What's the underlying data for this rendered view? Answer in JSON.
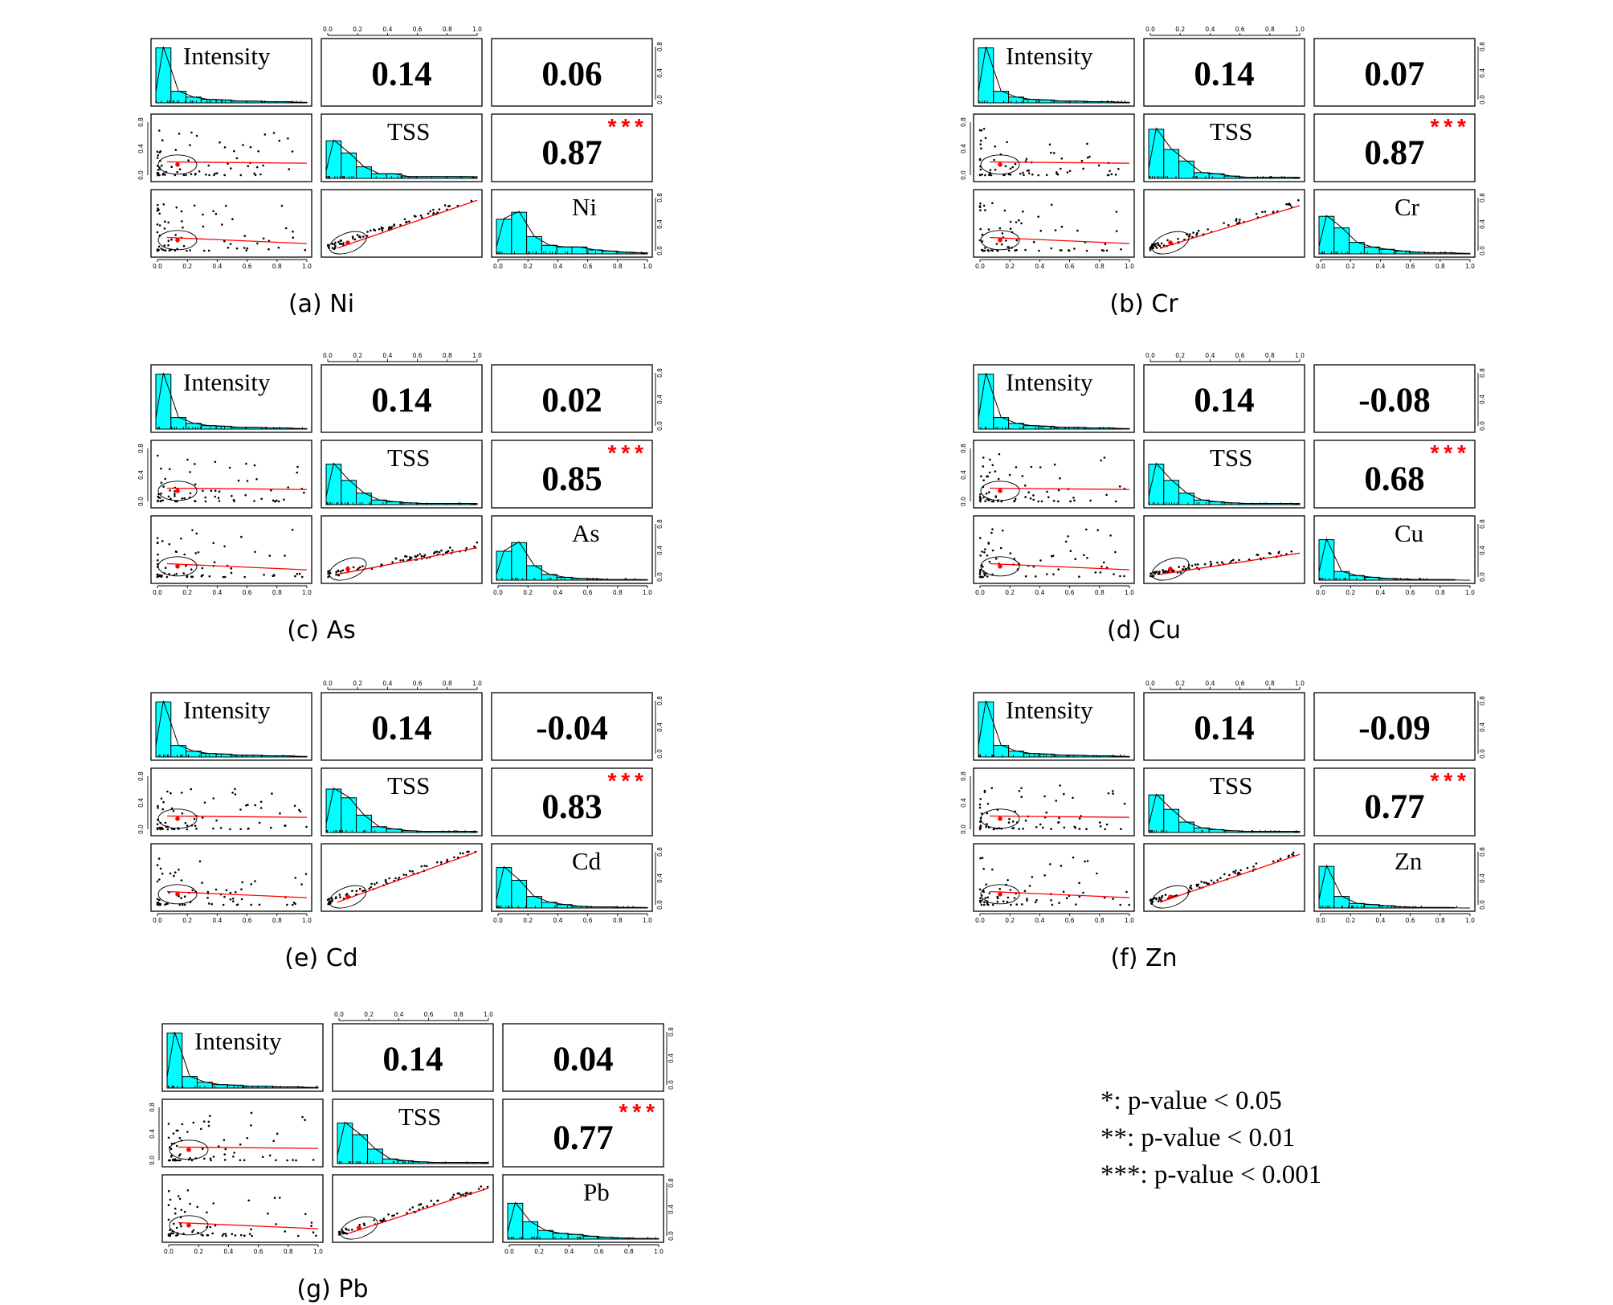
{
  "chart_data": [
    {
      "type": "scatter_matrix",
      "panel": "(a) Ni",
      "variables": [
        "Intensity",
        "TSS",
        "Ni"
      ],
      "correlations": {
        "intensity_tss": "0.14",
        "intensity_metal": "0.06",
        "tss_metal": "0.87"
      },
      "significance": {
        "tss_metal": "***"
      },
      "histograms": {
        "intensity": [
          0.95,
          0.2,
          0.1,
          0.06,
          0.05,
          0.03,
          0.03,
          0.02,
          0.02,
          0.01
        ],
        "tss": [
          0.65,
          0.44,
          0.2,
          0.08,
          0.08,
          0.03,
          0.03,
          0.03,
          0.03,
          0.03
        ],
        "metal": [
          0.6,
          0.72,
          0.3,
          0.15,
          0.12,
          0.12,
          0.07,
          0.05,
          0.03,
          0.02
        ]
      },
      "tss_metal_slope": 0.95,
      "axis_ticks": [
        "0.0",
        "0.2",
        "0.4",
        "0.6",
        "0.8",
        "1.0"
      ],
      "side_ticks": [
        "0.0",
        "0.4",
        "0.8"
      ]
    },
    {
      "type": "scatter_matrix",
      "panel": "(b) Cr",
      "variables": [
        "Intensity",
        "TSS",
        "Cr"
      ],
      "correlations": {
        "intensity_tss": "0.14",
        "intensity_metal": "0.07",
        "tss_metal": "0.87"
      },
      "significance": {
        "tss_metal": "***"
      },
      "histograms": {
        "intensity": [
          0.95,
          0.2,
          0.1,
          0.06,
          0.05,
          0.03,
          0.03,
          0.02,
          0.02,
          0.01
        ],
        "tss": [
          0.85,
          0.5,
          0.3,
          0.1,
          0.08,
          0.04,
          0.02,
          0.02,
          0.02,
          0.02
        ],
        "metal": [
          0.65,
          0.45,
          0.2,
          0.12,
          0.08,
          0.05,
          0.03,
          0.02,
          0.02,
          0.01
        ]
      },
      "tss_metal_slope": 0.85,
      "axis_ticks": [
        "0.0",
        "0.2",
        "0.4",
        "0.6",
        "0.8",
        "1.0"
      ],
      "side_ticks": [
        "0.0",
        "0.4",
        "0.8"
      ]
    },
    {
      "type": "scatter_matrix",
      "panel": "(c) As",
      "variables": [
        "Intensity",
        "TSS",
        "As"
      ],
      "correlations": {
        "intensity_tss": "0.14",
        "intensity_metal": "0.02",
        "tss_metal": "0.85"
      },
      "significance": {
        "tss_metal": "***"
      },
      "histograms": {
        "intensity": [
          0.95,
          0.2,
          0.1,
          0.06,
          0.05,
          0.03,
          0.03,
          0.02,
          0.02,
          0.01
        ],
        "tss": [
          0.7,
          0.42,
          0.2,
          0.08,
          0.05,
          0.03,
          0.02,
          0.02,
          0.02,
          0.02
        ],
        "metal": [
          0.5,
          0.65,
          0.25,
          0.1,
          0.05,
          0.03,
          0.02,
          0.01,
          0.01,
          0.01
        ]
      },
      "tss_metal_slope": 0.55,
      "axis_ticks": [
        "0.0",
        "0.2",
        "0.4",
        "0.6",
        "0.8",
        "1.0"
      ],
      "side_ticks": [
        "0.0",
        "0.4",
        "0.8"
      ]
    },
    {
      "type": "scatter_matrix",
      "panel": "(d) Cu",
      "variables": [
        "Intensity",
        "TSS",
        "Cu"
      ],
      "correlations": {
        "intensity_tss": "0.14",
        "intensity_metal": "-0.08",
        "tss_metal": "0.68"
      },
      "significance": {
        "tss_metal": "***"
      },
      "histograms": {
        "intensity": [
          0.95,
          0.2,
          0.1,
          0.06,
          0.05,
          0.03,
          0.03,
          0.02,
          0.02,
          0.01
        ],
        "tss": [
          0.7,
          0.42,
          0.2,
          0.08,
          0.05,
          0.03,
          0.02,
          0.02,
          0.02,
          0.02
        ],
        "metal": [
          0.7,
          0.15,
          0.08,
          0.05,
          0.03,
          0.02,
          0.01,
          0.01,
          0.01,
          0.0
        ]
      },
      "tss_metal_slope": 0.45,
      "axis_ticks": [
        "0.0",
        "0.2",
        "0.4",
        "0.6",
        "0.8",
        "1.0"
      ],
      "side_ticks": [
        "0.0",
        "0.4",
        "0.8"
      ]
    },
    {
      "type": "scatter_matrix",
      "panel": "(e) Cd",
      "variables": [
        "Intensity",
        "TSS",
        "Cd"
      ],
      "correlations": {
        "intensity_tss": "0.14",
        "intensity_metal": "-0.04",
        "tss_metal": "0.83"
      },
      "significance": {
        "tss_metal": "***"
      },
      "histograms": {
        "intensity": [
          0.95,
          0.2,
          0.1,
          0.06,
          0.05,
          0.03,
          0.03,
          0.02,
          0.02,
          0.01
        ],
        "tss": [
          0.75,
          0.6,
          0.3,
          0.1,
          0.06,
          0.03,
          0.02,
          0.02,
          0.02,
          0.02
        ],
        "metal": [
          0.7,
          0.48,
          0.2,
          0.1,
          0.06,
          0.03,
          0.02,
          0.02,
          0.01,
          0.01
        ]
      },
      "tss_metal_slope": 1.0,
      "axis_ticks": [
        "0.0",
        "0.2",
        "0.4",
        "0.6",
        "0.8",
        "1.0"
      ],
      "side_ticks": [
        "0.0",
        "0.4",
        "0.8"
      ]
    },
    {
      "type": "scatter_matrix",
      "panel": "(f) Zn",
      "variables": [
        "Intensity",
        "TSS",
        "Zn"
      ],
      "correlations": {
        "intensity_tss": "0.14",
        "intensity_metal": "-0.09",
        "tss_metal": "0.77"
      },
      "significance": {
        "tss_metal": "***"
      },
      "histograms": {
        "intensity": [
          0.95,
          0.2,
          0.1,
          0.06,
          0.05,
          0.03,
          0.03,
          0.02,
          0.02,
          0.01
        ],
        "tss": [
          0.65,
          0.4,
          0.18,
          0.08,
          0.05,
          0.03,
          0.02,
          0.02,
          0.02,
          0.02
        ],
        "metal": [
          0.72,
          0.2,
          0.08,
          0.06,
          0.04,
          0.02,
          0.01,
          0.01,
          0.01,
          0.0
        ]
      },
      "tss_metal_slope": 0.95,
      "axis_ticks": [
        "0.0",
        "0.2",
        "0.4",
        "0.6",
        "0.8",
        "1.0"
      ],
      "side_ticks": [
        "0.0",
        "0.4",
        "0.8"
      ]
    },
    {
      "type": "scatter_matrix",
      "panel": "(g) Pb",
      "variables": [
        "Intensity",
        "TSS",
        "Pb"
      ],
      "correlations": {
        "intensity_tss": "0.14",
        "intensity_metal": "0.04",
        "tss_metal": "0.77"
      },
      "significance": {
        "tss_metal": "***"
      },
      "histograms": {
        "intensity": [
          0.95,
          0.2,
          0.1,
          0.06,
          0.05,
          0.03,
          0.03,
          0.02,
          0.02,
          0.01
        ],
        "tss": [
          0.7,
          0.5,
          0.25,
          0.08,
          0.05,
          0.03,
          0.02,
          0.02,
          0.02,
          0.02
        ],
        "metal": [
          0.62,
          0.3,
          0.15,
          0.1,
          0.08,
          0.05,
          0.03,
          0.02,
          0.01,
          0.01
        ]
      },
      "tss_metal_slope": 0.9,
      "axis_ticks": [
        "0.0",
        "0.2",
        "0.4",
        "0.6",
        "0.8",
        "1.0"
      ],
      "side_ticks": [
        "0.0",
        "0.4",
        "0.8"
      ]
    }
  ],
  "legend": {
    "line1": "*: p-value < 0.05",
    "line2": "**: p-value < 0.01",
    "line3": "***: p-value < 0.001"
  }
}
